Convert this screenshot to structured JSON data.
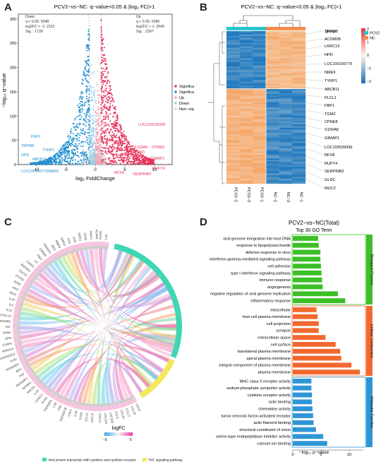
{
  "panels": {
    "a": {
      "letter": "A"
    },
    "b": {
      "letter": "B"
    },
    "c": {
      "letter": "C"
    },
    "d": {
      "letter": "D"
    }
  },
  "volcano": {
    "title": "PCV2−vs−NC: q−value<0.05 & |log₂ FC|>1",
    "xlabel": "log₂ FoldChange",
    "ylabel": "−log₁₀ q−value",
    "xticks": [
      "-10",
      "-5",
      "0",
      "5",
      "10"
    ],
    "yticks": [
      "0",
      "50",
      "100",
      "150",
      "200",
      "250",
      "300"
    ],
    "down_box": [
      "Down",
      "q < 0.05: 5048",
      "log2FC < -1: 2151",
      "Sig. : 1728"
    ],
    "up_box": [
      "Up",
      "q < 0.05: 5396",
      "log2FC > 1: 3040",
      "Sig. : 2397"
    ],
    "legend": [
      "Significant Up",
      "Significant Down",
      "Up",
      "Down",
      "Non−significant"
    ],
    "colors": {
      "sig_up": "#e8315b",
      "sig_down": "#1e8fd0",
      "up": "#f3a3b5",
      "down": "#8fcbe9",
      "ns": "#d9d9d9"
    },
    "left_genes": [
      "FBP1",
      "TRPM8",
      "TYRP1",
      "HPD",
      "ABCB11",
      "LOC100156775",
      "NME9"
    ],
    "right_genes": [
      "LOC100525099",
      "S100A8",
      "CPNE8",
      "TGM3",
      "GIMAP1",
      "RFX8",
      "SERPINB2",
      "RUFY4"
    ]
  },
  "heatmap": {
    "title": "PCV2−vs−NC: q−value<0.05 & |log₂ FC|>1",
    "group_label": "group",
    "groups": [
      "PCV2",
      "NC"
    ],
    "group_colors": [
      "#27c5cf",
      "#f58b4c"
    ],
    "scale_ticks": [
      "2",
      "1",
      "0",
      "−1",
      "−2"
    ],
    "genes": [
      "TRPM8",
      "ACSM2B",
      "LRRC19",
      "HPD",
      "LOC100156775",
      "NME9",
      "TYRP1",
      "ABCB11",
      "PLCL1",
      "FBP1",
      "TGM3",
      "CPNE8",
      "S100A8",
      "GIMAP1",
      "LOC100525099",
      "RFX8",
      "RUFY4",
      "SERPINB2",
      "GLDC",
      "MUC2"
    ],
    "samples": [
      "PCV2−2",
      "PCV2−3",
      "PCV2−1",
      "NC−2",
      "NC−3",
      "NC−1"
    ]
  },
  "chord": {
    "legend_title": "logFC",
    "scale_min": "−5",
    "scale_max": "5",
    "pathways": [
      "Viral protein interaction with cytokine and cytokine receptor",
      "TNF signaling pathway"
    ],
    "pathway_colors": [
      "#3fd6b4",
      "#f2e85a"
    ],
    "genes": [
      "CCL4",
      "CCL25",
      "CCL17",
      "CCL20",
      "CCL5",
      "LOC100",
      "LOC102",
      "CXCL3",
      "CXCL9",
      "CCL11",
      "CCR1",
      "IL1B",
      "CSF1",
      "TNFRSF1B",
      "FAS",
      "LTB",
      "TNFRSF8",
      "PLAU",
      "CX3CL1",
      "IL18",
      "SOCS3",
      "NFKBIA",
      "RASGRF2",
      "PGF",
      "IRF1",
      "RASGRP2",
      "TLR2",
      "CACNA2D3",
      "ADRA1A",
      "CSAR1",
      "GPR",
      "PPAR",
      "TNF",
      "BDKRB2",
      "CXCL10",
      "IL1A",
      "IL6",
      "IL10",
      "SELE",
      "JAK2",
      "EDN1",
      "PTGS2",
      "CDC42",
      "MAP2K3",
      "CASP3",
      "LIF",
      "PIK3",
      "CREB5",
      "TNFAIP3",
      "IRF5",
      "MMP9",
      "BIRC3",
      "FOS",
      "JUN",
      "RIPK1",
      "CD40",
      "TRAF1",
      "VCAM1",
      "ICAM1",
      "IL15"
    ]
  },
  "goterm": {
    "title": "PCV2−vs−NC(Total)",
    "subtitle": "Top 30 GO Term",
    "xlabel": "−log₁₀ p−value",
    "xticks": [
      "0",
      "5",
      "10"
    ],
    "categories": [
      {
        "name": "Biological Process",
        "color": "#3cbf27",
        "terms": [
          {
            "label": "viral genome integration into host DNA",
            "value": 4.5
          },
          {
            "label": "response to lipopolysaccharide",
            "value": 4.6
          },
          {
            "label": "defense response to virus",
            "value": 4.9
          },
          {
            "label": "interferon-gamma-mediated signaling pathway",
            "value": 4.9
          },
          {
            "label": "cell adhesion",
            "value": 5.0
          },
          {
            "label": "type I interferon signaling pathway",
            "value": 5.1
          },
          {
            "label": "immune response",
            "value": 5.2
          },
          {
            "label": "angiogenesis",
            "value": 5.3
          },
          {
            "label": "negative regulation of viral genome replication",
            "value": 8.0
          },
          {
            "label": "inflammatory response",
            "value": 9.3
          }
        ]
      },
      {
        "name": "Cellular Component",
        "color": "#f1692f",
        "terms": [
          {
            "label": "intracellular",
            "value": 4.2
          },
          {
            "label": "host cell plasma membrane",
            "value": 4.4
          },
          {
            "label": "cell projection",
            "value": 4.6
          },
          {
            "label": "synapse",
            "value": 4.6
          },
          {
            "label": "extracellular space",
            "value": 5.8
          },
          {
            "label": "cell surface",
            "value": 7.6
          },
          {
            "label": "basolateral plasma membrane",
            "value": 8.4
          },
          {
            "label": "apical plasma membrane",
            "value": 8.6
          },
          {
            "label": "integral component of plasma membrane",
            "value": 10.4
          },
          {
            "label": "plasma membrane",
            "value": 11.9
          }
        ]
      },
      {
        "name": "Molecular Function",
        "color": "#2f96d6",
        "terms": [
          {
            "label": "MHC class II receptor activity",
            "value": 3.3
          },
          {
            "label": "sodium:phosphate symporter activity",
            "value": 3.3
          },
          {
            "label": "cytokine receptor activity",
            "value": 3.4
          },
          {
            "label": "actin binding",
            "value": 3.4
          },
          {
            "label": "chemokine activity",
            "value": 3.5
          },
          {
            "label": "tumor necrosis factor-activated receptor",
            "value": 3.6
          },
          {
            "label": "actin filament binding",
            "value": 3.7
          },
          {
            "label": "structural constituent of virion",
            "value": 4.1
          },
          {
            "label": "serine-type endopeptidase inhibitor activity",
            "value": 5.4
          },
          {
            "label": "calcium ion binding",
            "value": 6.1
          }
        ]
      }
    ]
  }
}
